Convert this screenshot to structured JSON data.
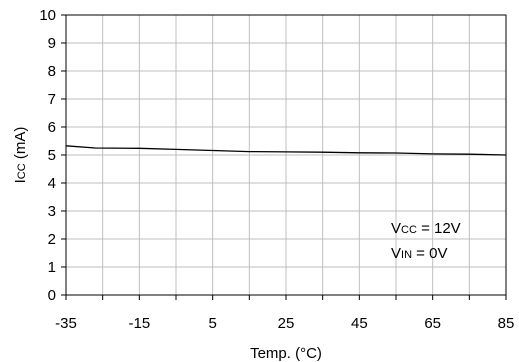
{
  "chart_data": {
    "type": "line",
    "title": "",
    "xlabel": "Temp. (°C)",
    "ylabel_main": "I",
    "ylabel_sub": "CC",
    "ylabel_unit": " (mA)",
    "xlim": [
      -35,
      85
    ],
    "ylim": [
      0,
      10
    ],
    "grid": true,
    "legend": "none",
    "x_ticks": [
      -35,
      -15,
      5,
      25,
      45,
      65,
      85
    ],
    "x_gridlines": [
      -35,
      -25,
      -15,
      -5,
      5,
      15,
      25,
      35,
      45,
      55,
      65,
      75,
      85
    ],
    "y_ticks": [
      0,
      1,
      2,
      3,
      4,
      5,
      6,
      7,
      8,
      9,
      10
    ],
    "series": [
      {
        "color": "#000000",
        "x": [
          -35,
          -27,
          -15,
          -5,
          5,
          15,
          25,
          35,
          45,
          55,
          65,
          75,
          85
        ],
        "y": [
          5.33,
          5.25,
          5.24,
          5.2,
          5.16,
          5.12,
          5.11,
          5.1,
          5.08,
          5.07,
          5.04,
          5.03,
          5.0
        ]
      }
    ],
    "annotations": [
      {
        "main": "V",
        "sub": "CC",
        "rest": " = 12V"
      },
      {
        "main": "V",
        "sub": "IN",
        "rest": " = 0V"
      }
    ],
    "colors": {
      "grid": "#bfbfbf",
      "axis": "#000000",
      "line": "#000000"
    }
  }
}
